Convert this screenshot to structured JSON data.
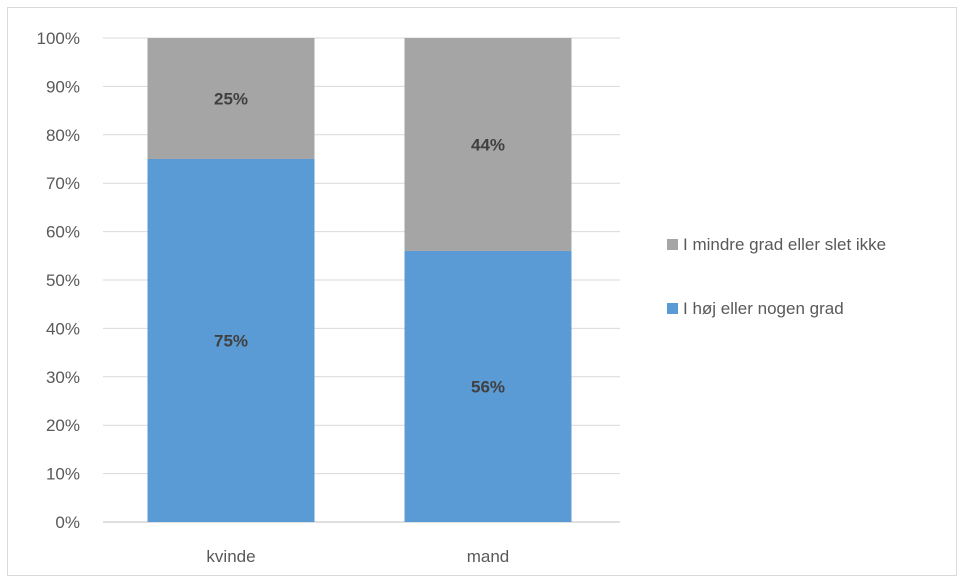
{
  "chart_data": {
    "type": "bar",
    "stacked": true,
    "categories": [
      "kvinde",
      "mand"
    ],
    "series": [
      {
        "name": "I høj eller nogen grad",
        "values": [
          75,
          56
        ],
        "labels": [
          "75%",
          "56%"
        ],
        "color": "#5b9bd5"
      },
      {
        "name": "I mindre grad eller slet ikke",
        "values": [
          25,
          44
        ],
        "labels": [
          "25%",
          "44%"
        ],
        "color": "#a5a5a5"
      }
    ],
    "ylim": [
      0,
      100
    ],
    "yticks": [
      "0%",
      "10%",
      "20%",
      "30%",
      "40%",
      "50%",
      "60%",
      "70%",
      "80%",
      "90%",
      "100%"
    ],
    "grid": true,
    "legend_position": "right",
    "legend_order": [
      "I mindre grad eller slet ikke",
      "I høj eller nogen grad"
    ],
    "title": "",
    "xlabel": "",
    "ylabel": ""
  },
  "colors": {
    "grid": "#d9d9d9",
    "axis": "#bfbfbf"
  }
}
